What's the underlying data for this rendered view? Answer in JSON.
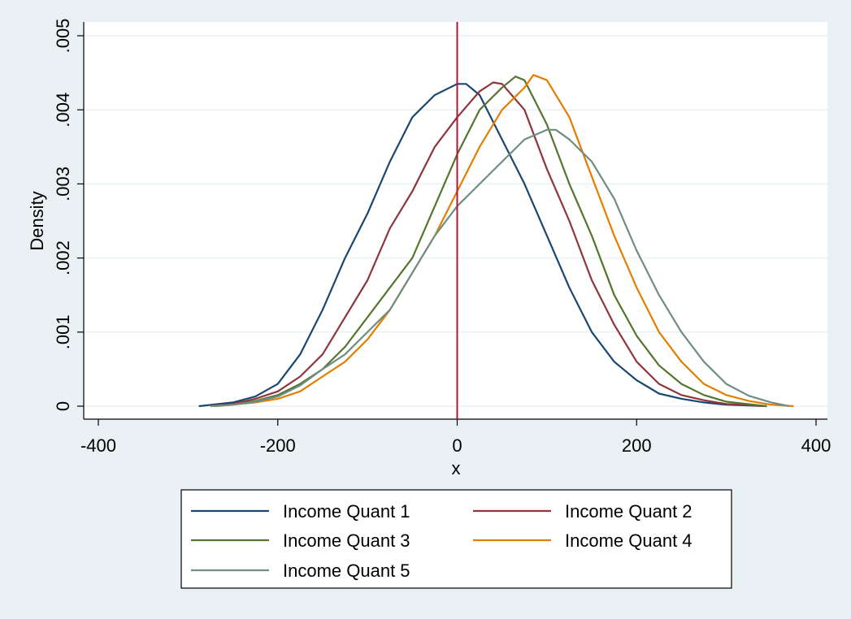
{
  "chart_data": {
    "type": "line",
    "title": "",
    "xlabel": "x",
    "ylabel": "Density",
    "xlim": [
      -400,
      400
    ],
    "ylim": [
      0,
      0.005
    ],
    "x_ticks": [
      -400,
      -200,
      0,
      200,
      400
    ],
    "x_tick_labels": [
      "-400",
      "-200",
      "0",
      "200",
      "400"
    ],
    "y_ticks": [
      0,
      0.001,
      0.002,
      0.003,
      0.004,
      0.005
    ],
    "y_tick_labels": [
      "0",
      ".001",
      ".002",
      ".003",
      ".004",
      ".005"
    ],
    "grid": "horizontal",
    "legend_position": "bottom",
    "reference_line": {
      "x": 0,
      "color": "#B2163A"
    },
    "series": [
      {
        "name": "Income Quant 1",
        "color": "#1A476F",
        "points": [
          [
            -288,
            0.0
          ],
          [
            -250,
            5e-05
          ],
          [
            -225,
            0.00013
          ],
          [
            -200,
            0.0003
          ],
          [
            -175,
            0.0007
          ],
          [
            -150,
            0.0013
          ],
          [
            -125,
            0.002
          ],
          [
            -100,
            0.0026
          ],
          [
            -75,
            0.0033
          ],
          [
            -50,
            0.0039
          ],
          [
            -25,
            0.0042
          ],
          [
            0,
            0.00435
          ],
          [
            10,
            0.00435
          ],
          [
            25,
            0.0042
          ],
          [
            50,
            0.0036
          ],
          [
            75,
            0.003
          ],
          [
            100,
            0.0023
          ],
          [
            125,
            0.0016
          ],
          [
            150,
            0.001
          ],
          [
            175,
            0.0006
          ],
          [
            200,
            0.00035
          ],
          [
            225,
            0.00017
          ],
          [
            250,
            0.0001
          ],
          [
            275,
            5e-05
          ],
          [
            300,
            2e-05
          ],
          [
            345,
            0.0
          ]
        ]
      },
      {
        "name": "Income Quant 2",
        "color": "#90353B",
        "points": [
          [
            -275,
            0.0
          ],
          [
            -250,
            3e-05
          ],
          [
            -225,
            0.0001
          ],
          [
            -200,
            0.0002
          ],
          [
            -175,
            0.0004
          ],
          [
            -150,
            0.0007
          ],
          [
            -125,
            0.0012
          ],
          [
            -100,
            0.0017
          ],
          [
            -75,
            0.0024
          ],
          [
            -50,
            0.0029
          ],
          [
            -25,
            0.0035
          ],
          [
            0,
            0.0039
          ],
          [
            25,
            0.00425
          ],
          [
            40,
            0.00437
          ],
          [
            50,
            0.00435
          ],
          [
            75,
            0.004
          ],
          [
            100,
            0.0032
          ],
          [
            125,
            0.0025
          ],
          [
            150,
            0.0017
          ],
          [
            175,
            0.0011
          ],
          [
            200,
            0.0006
          ],
          [
            225,
            0.0003
          ],
          [
            250,
            0.00015
          ],
          [
            275,
            8e-05
          ],
          [
            300,
            3e-05
          ],
          [
            345,
            0.0
          ]
        ]
      },
      {
        "name": "Income Quant 3",
        "color": "#55752F",
        "points": [
          [
            -270,
            0.0
          ],
          [
            -250,
            2e-05
          ],
          [
            -225,
            7e-05
          ],
          [
            -200,
            0.00015
          ],
          [
            -175,
            0.0003
          ],
          [
            -150,
            0.0005
          ],
          [
            -125,
            0.0008
          ],
          [
            -100,
            0.0012
          ],
          [
            -75,
            0.0016
          ],
          [
            -50,
            0.002
          ],
          [
            -25,
            0.0027
          ],
          [
            0,
            0.0034
          ],
          [
            25,
            0.004
          ],
          [
            50,
            0.0043
          ],
          [
            65,
            0.00445
          ],
          [
            75,
            0.0044
          ],
          [
            100,
            0.0038
          ],
          [
            125,
            0.003
          ],
          [
            150,
            0.0023
          ],
          [
            175,
            0.0015
          ],
          [
            200,
            0.00095
          ],
          [
            225,
            0.00055
          ],
          [
            250,
            0.0003
          ],
          [
            275,
            0.00015
          ],
          [
            300,
            6e-05
          ],
          [
            345,
            0.0
          ]
        ]
      },
      {
        "name": "Income Quant 4",
        "color": "#E37E00",
        "points": [
          [
            -270,
            0.0
          ],
          [
            -250,
            2e-05
          ],
          [
            -225,
            5e-05
          ],
          [
            -200,
            0.0001
          ],
          [
            -175,
            0.0002
          ],
          [
            -150,
            0.0004
          ],
          [
            -125,
            0.0006
          ],
          [
            -100,
            0.0009
          ],
          [
            -75,
            0.0013
          ],
          [
            -50,
            0.0018
          ],
          [
            -25,
            0.0023
          ],
          [
            0,
            0.0029
          ],
          [
            25,
            0.0035
          ],
          [
            50,
            0.004
          ],
          [
            75,
            0.0043
          ],
          [
            85,
            0.00447
          ],
          [
            100,
            0.0044
          ],
          [
            125,
            0.0039
          ],
          [
            150,
            0.0031
          ],
          [
            175,
            0.0023
          ],
          [
            200,
            0.0016
          ],
          [
            225,
            0.001
          ],
          [
            250,
            0.0006
          ],
          [
            275,
            0.0003
          ],
          [
            300,
            0.00015
          ],
          [
            325,
            7e-05
          ],
          [
            350,
            2e-05
          ],
          [
            375,
            0.0
          ]
        ]
      },
      {
        "name": "Income Quant 5",
        "color": "#6E8E84",
        "points": [
          [
            -275,
            0.0
          ],
          [
            -250,
            2e-05
          ],
          [
            -225,
            6e-05
          ],
          [
            -200,
            0.00013
          ],
          [
            -175,
            0.00028
          ],
          [
            -150,
            0.0005
          ],
          [
            -125,
            0.0007
          ],
          [
            -100,
            0.001
          ],
          [
            -75,
            0.0013
          ],
          [
            -50,
            0.0018
          ],
          [
            -25,
            0.0023
          ],
          [
            0,
            0.0027
          ],
          [
            25,
            0.003
          ],
          [
            50,
            0.0033
          ],
          [
            75,
            0.0036
          ],
          [
            100,
            0.00373
          ],
          [
            110,
            0.00373
          ],
          [
            125,
            0.0036
          ],
          [
            150,
            0.0033
          ],
          [
            175,
            0.0028
          ],
          [
            200,
            0.0021
          ],
          [
            225,
            0.0015
          ],
          [
            250,
            0.001
          ],
          [
            275,
            0.0006
          ],
          [
            300,
            0.0003
          ],
          [
            325,
            0.00014
          ],
          [
            350,
            5e-05
          ],
          [
            370,
            0.0
          ]
        ]
      }
    ]
  }
}
